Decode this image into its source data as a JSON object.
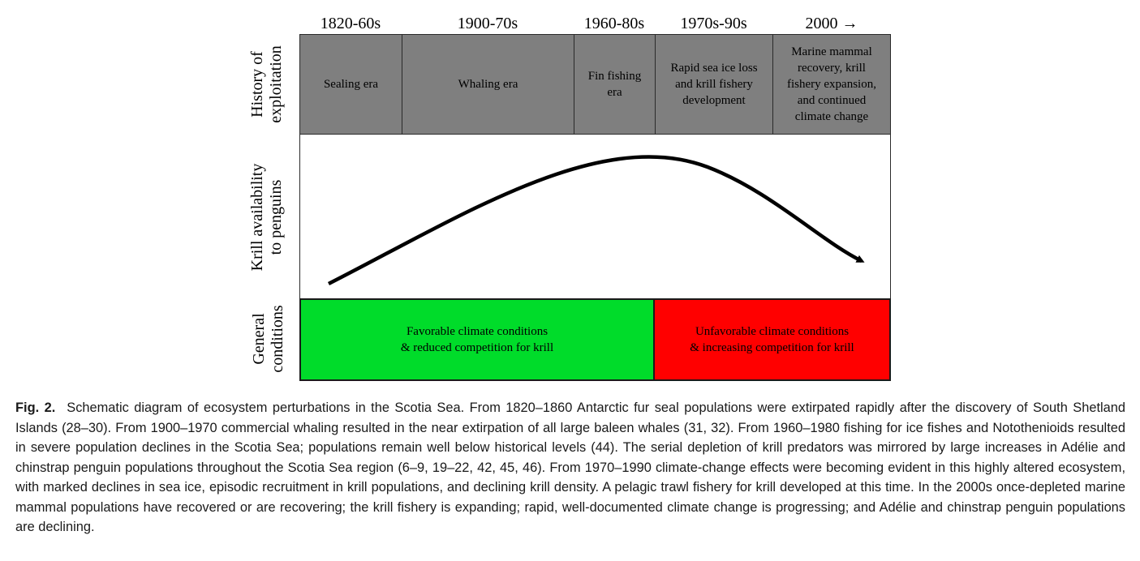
{
  "figure": {
    "periods": [
      "1820-60s",
      "1900-70s",
      "1960-80s",
      "1970s-90s",
      "2000 →"
    ],
    "row_labels": {
      "history": [
        "History of",
        "exploitation"
      ],
      "krill": [
        "Krill availability",
        "to penguins"
      ],
      "conditions": [
        "General",
        "conditions"
      ]
    },
    "eras": [
      [
        "Sealing era"
      ],
      [
        "Whaling era"
      ],
      [
        "Fin fishing",
        "era"
      ],
      [
        "Rapid sea ice loss",
        "and krill fishery",
        "development"
      ],
      [
        "Marine mammal",
        "recovery, krill",
        "fishery expansion,",
        "and continued",
        "climate change"
      ]
    ],
    "conditions": {
      "favorable": {
        "lines": [
          "Favorable climate conditions",
          "& reduced competition for krill"
        ],
        "color": "#00dc2a"
      },
      "unfavorable": {
        "lines": [
          "Unfavorable climate conditions",
          "& increasing competition for krill"
        ],
        "color": "#ff0000"
      }
    },
    "era_fill_color": "#7f7f7f",
    "curve_color": "#000000"
  },
  "caption": {
    "label": "Fig. 2.",
    "text": "Schematic diagram of ecosystem perturbations in the Scotia Sea. From 1820–1860 Antarctic fur seal populations were extirpated rapidly after the discovery of South Shetland Islands (28–30). From 1900–1970 commercial whaling resulted in the near extirpation of all large baleen whales (31, 32). From 1960–1980 fishing for ice fishes and Notothenioids resulted in severe population declines in the Scotia Sea; populations remain well below historical levels (44). The serial depletion of krill predators was mirrored by large increases in Adélie and chinstrap penguin populations throughout the Scotia Sea region (6–9, 19–22, 42, 45, 46). From 1970–1990 climate-change effects were becoming evident in this highly altered ecosystem, with marked declines in sea ice, episodic recruitment in krill populations, and declining krill density. A pelagic trawl fishery for krill developed at this time. In the 2000s once-depleted marine mammal populations have recovered or are recovering; the krill fishery is expanding; rapid, well-documented climate change is progressing; and Adélie and chinstrap penguin populations are declining."
  }
}
